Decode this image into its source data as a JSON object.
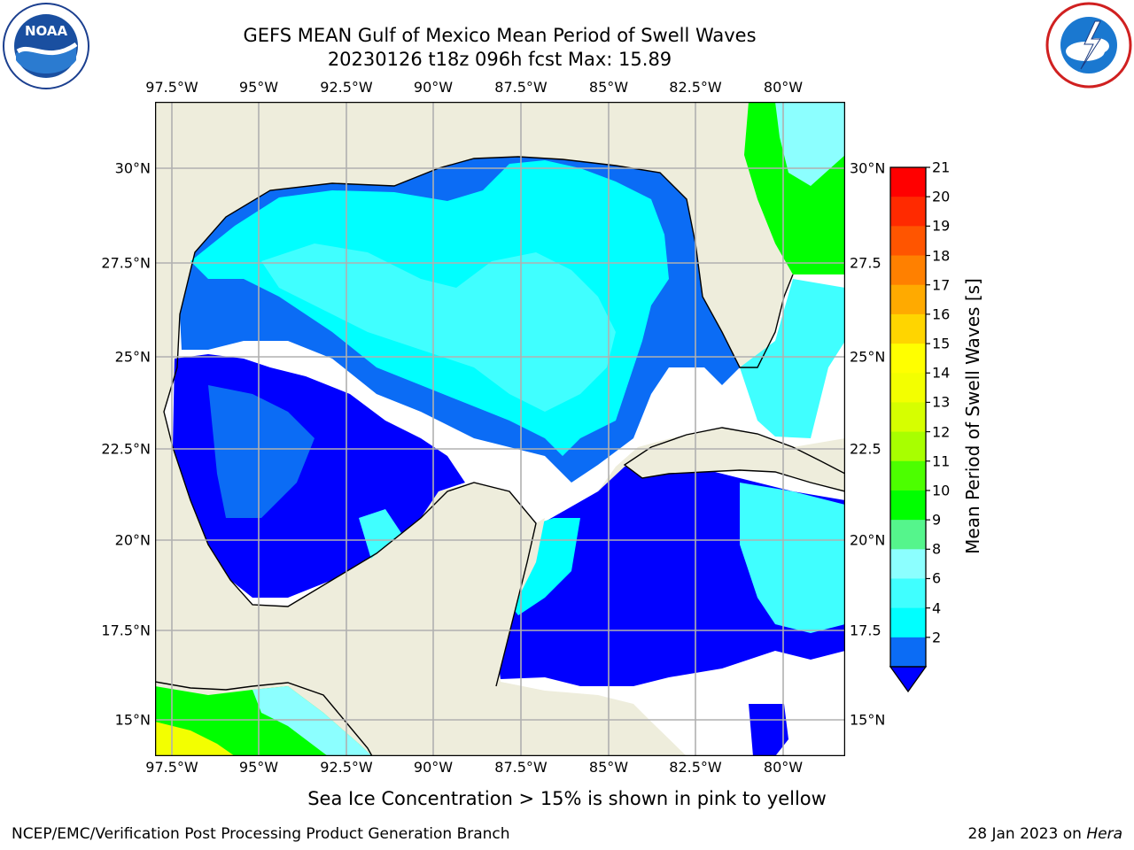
{
  "header": {
    "title_line1": "GEFS MEAN Gulf of Mexico Mean Period of Swell Waves",
    "title_line2": "20230126 t18z 096h fcst   Max: 15.89"
  },
  "logos": {
    "left": {
      "name": "NOAA",
      "ring_text": "NATIONAL OCEANIC AND ATMOSPHERIC ADMINISTRATION",
      "bottom_text": "U.S. DEPARTMENT OF COMMERCE"
    },
    "right": {
      "ring_text": "NATIONAL WEATHER SERVICE"
    }
  },
  "map": {
    "lon_labels": [
      "97.5°W",
      "95°W",
      "92.5°W",
      "90°W",
      "87.5°W",
      "85°W",
      "82.5°W",
      "80°W"
    ],
    "lat_labels_left": [
      "30°N",
      "27.5°N",
      "25°N",
      "22.5°N",
      "20°N",
      "17.5°N",
      "15°N"
    ],
    "lat_labels_right": [
      "30°N",
      "27.5",
      "25°N",
      "22.5",
      "20°N",
      "17.5",
      "15°N"
    ],
    "colors": {
      "land": "#eeeddc",
      "ocean_missing": "#ffffff",
      "swell_2_4": "#0000ff",
      "swell_4_6": "#0b6cf5",
      "swell_6_8": "#00ffff",
      "swell_8_9": "#40ffff",
      "swell_9_10": "#8cffff",
      "swell_10_11": "#55f58c",
      "swell_11_12": "#00ff00",
      "swell_13_15": "#f3ff00"
    }
  },
  "colorbar": {
    "label": "Mean Period of Swell Waves [s]",
    "ticks": [
      "21",
      "20",
      "19",
      "18",
      "17",
      "16",
      "15",
      "14",
      "13",
      "12",
      "11",
      "10",
      "9",
      "8",
      "6",
      "4",
      "2"
    ],
    "bin_colors_top_to_bottom": [
      "#ff0000",
      "#ff2a00",
      "#ff5500",
      "#ff8000",
      "#ffaa00",
      "#ffd500",
      "#ffff00",
      "#f3ff00",
      "#d6ff00",
      "#a8ff00",
      "#4cff00",
      "#00ff00",
      "#55f58c",
      "#8cffff",
      "#40ffff",
      "#00ffff",
      "#0b6cf5"
    ],
    "extend_below_color": "#0000ff"
  },
  "notes": {
    "ice": "Sea Ice Concentration > 15% is shown in pink to yellow"
  },
  "footer": {
    "left": "NCEP/EMC/Verification Post Processing Product Generation Branch",
    "date": "28 Jan 2023 on",
    "host": "Hera"
  }
}
